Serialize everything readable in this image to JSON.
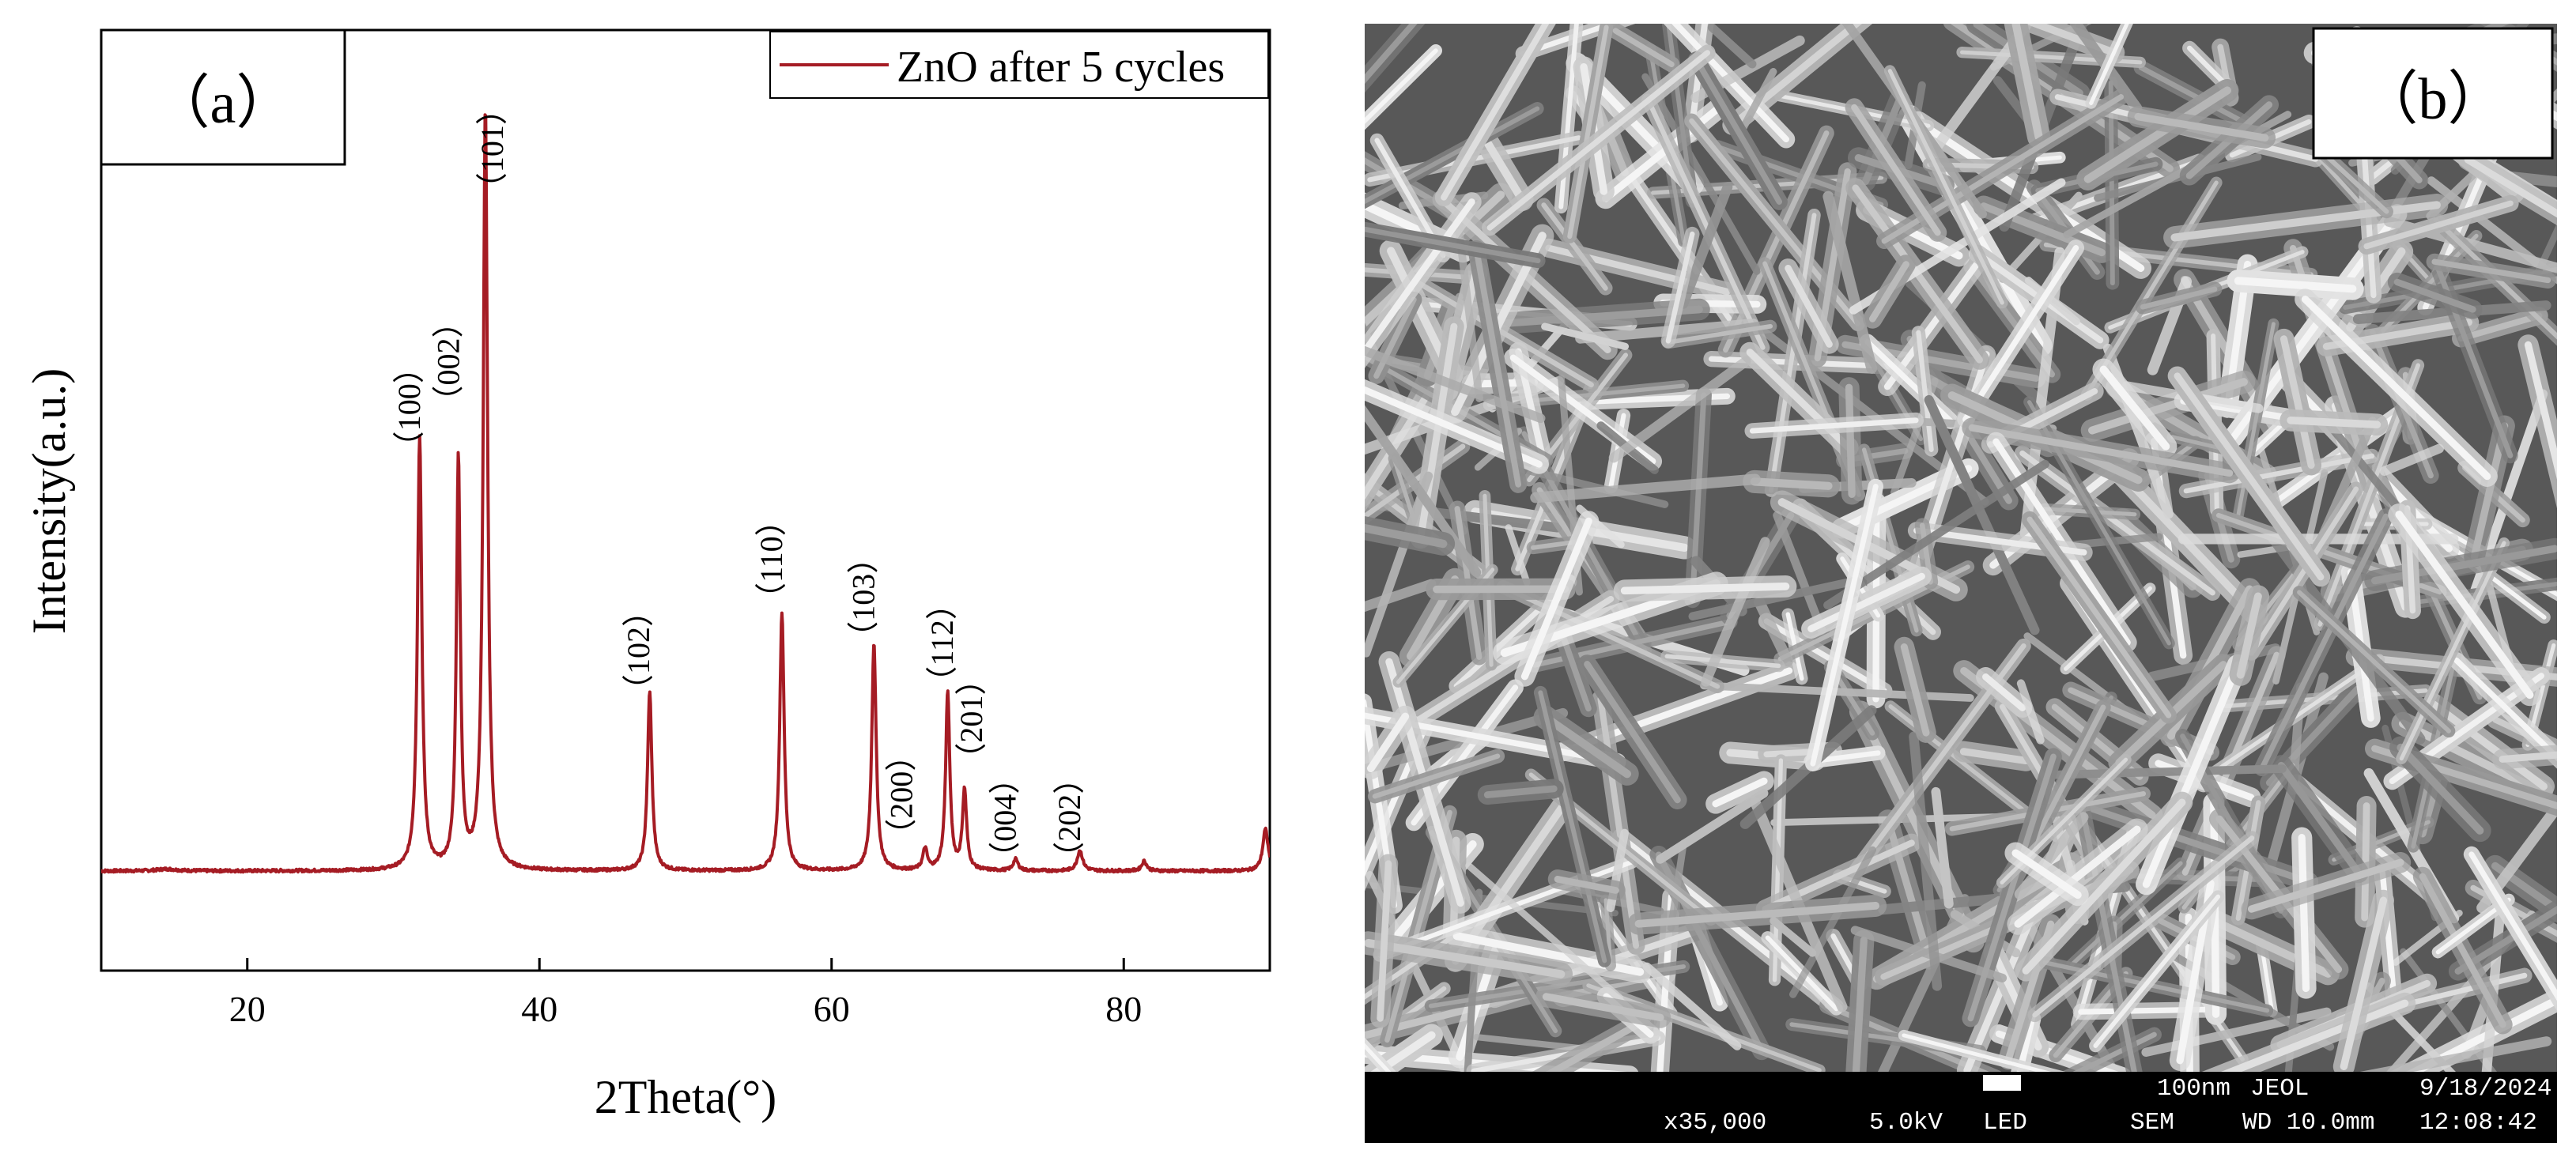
{
  "chart_data": {
    "type": "line",
    "panel_label": "（a）",
    "xlabel": "2Theta(°)",
    "ylabel": "Intensity(a.u.)",
    "xlim": [
      10,
      90
    ],
    "x_ticks": [
      20,
      40,
      60,
      80
    ],
    "y_ticks_shown": false,
    "grid": false,
    "legend_placement": "top-right",
    "series": [
      {
        "name": "ZnO after 5 cycles",
        "color": "#a51c24",
        "baseline": 1.0,
        "noise": 0.18,
        "peaks": [
          {
            "x": 14.5,
            "height": 0.25,
            "width": 0.8
          },
          {
            "x": 31.8,
            "height": 57.0,
            "width": 0.18
          },
          {
            "x": 34.45,
            "height": 54.0,
            "width": 0.16
          },
          {
            "x": 36.3,
            "height": 100.0,
            "width": 0.18
          },
          {
            "x": 47.55,
            "height": 23.5,
            "width": 0.18
          },
          {
            "x": 56.6,
            "height": 34.0,
            "width": 0.18
          },
          {
            "x": 62.9,
            "height": 30.0,
            "width": 0.18
          },
          {
            "x": 66.4,
            "height": 2.8,
            "width": 0.18
          },
          {
            "x": 67.95,
            "height": 23.5,
            "width": 0.17
          },
          {
            "x": 69.1,
            "height": 10.5,
            "width": 0.17
          },
          {
            "x": 72.6,
            "height": 1.5,
            "width": 0.2
          },
          {
            "x": 77.0,
            "height": 2.7,
            "width": 0.22
          },
          {
            "x": 81.4,
            "height": 1.3,
            "width": 0.2
          },
          {
            "x": 89.7,
            "height": 5.5,
            "width": 0.22
          }
        ]
      }
    ],
    "annotations": [
      {
        "text": "（100）",
        "x": 31.8,
        "y": 62
      },
      {
        "text": "（002）",
        "x": 34.5,
        "y": 68
      },
      {
        "text": "（101）",
        "x": 37.5,
        "y": 96
      },
      {
        "text": "（102）",
        "x": 47.5,
        "y": 30
      },
      {
        "text": "（110）",
        "x": 56.6,
        "y": 42
      },
      {
        "text": "（103）",
        "x": 62.9,
        "y": 37
      },
      {
        "text": "（200）",
        "x": 65.5,
        "y": 11
      },
      {
        "text": "（112）",
        "x": 68.3,
        "y": 31
      },
      {
        "text": "（201）",
        "x": 70.3,
        "y": 21
      },
      {
        "text": "（004）",
        "x": 72.6,
        "y": 8
      },
      {
        "text": "（202）",
        "x": 77.0,
        "y": 8
      }
    ]
  },
  "sem_image": {
    "panel_label": "（b）",
    "info_bar": {
      "scale": "100nm",
      "brand": "JEOL",
      "date": "9/18/2024",
      "magnification": "x35,000",
      "voltage": "5.0kV",
      "detector": "LED",
      "mode": "SEM",
      "working_distance": "WD 10.0mm",
      "time": "12:08:42"
    }
  }
}
